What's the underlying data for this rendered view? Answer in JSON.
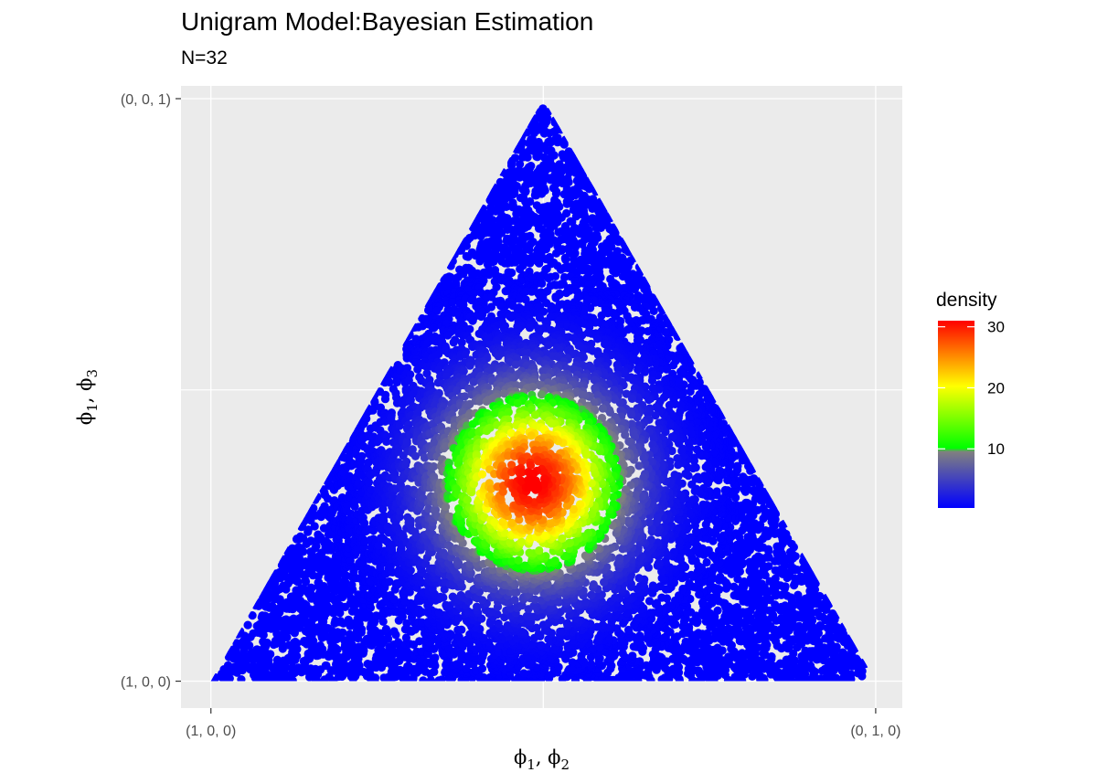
{
  "chart_data": {
    "type": "scatter",
    "title": "Unigram Model:Bayesian Estimation",
    "subtitle": "N=32",
    "xlabel": {
      "base": "ϕ",
      "sub1": "1",
      "sep": ", ",
      "base2": "ϕ",
      "sub2": "2"
    },
    "ylabel": {
      "base": "ϕ",
      "sub1": "1",
      "sep": ", ",
      "base2": "ϕ",
      "sub2": "3"
    },
    "x_ticks": [
      {
        "value": 0,
        "label": "(1, 0, 0)"
      },
      {
        "value": 1,
        "label": "(0, 1, 0)"
      }
    ],
    "y_ticks": [
      {
        "value": 0,
        "label": "(1, 0, 0)"
      },
      {
        "value": 0.866,
        "label": "(0, 0, 1)"
      }
    ],
    "xlim": [
      -0.045,
      1.04
    ],
    "ylim": [
      -0.04,
      0.885
    ],
    "x_gridlines": [
      0,
      0.5,
      1
    ],
    "y_gridlines": [
      0,
      0.433,
      0.866
    ],
    "grid": true,
    "simplex_vertices": [
      [
        0,
        0
      ],
      [
        1,
        0
      ],
      [
        0.5,
        0.866
      ]
    ],
    "density_mode": {
      "x": 0.485,
      "y": 0.295
    },
    "density_max": 31,
    "legend": {
      "title": "density",
      "placement": "right",
      "labels": [
        {
          "value": 10,
          "label": "10"
        },
        {
          "value": 20,
          "label": "20"
        },
        {
          "value": 30,
          "label": "30"
        }
      ],
      "range": [
        0.3,
        31
      ],
      "colors": [
        {
          "stop": 0.0,
          "color": "#0000ff"
        },
        {
          "stop": 0.3,
          "color": "#808080"
        },
        {
          "stop": 0.32,
          "color": "#00ff00"
        },
        {
          "stop": 0.65,
          "color": "#ffff00"
        },
        {
          "stop": 1.0,
          "color": "#ff0000"
        }
      ]
    },
    "panel_background": "#ebebeb",
    "gridline_color": "#ffffff"
  }
}
